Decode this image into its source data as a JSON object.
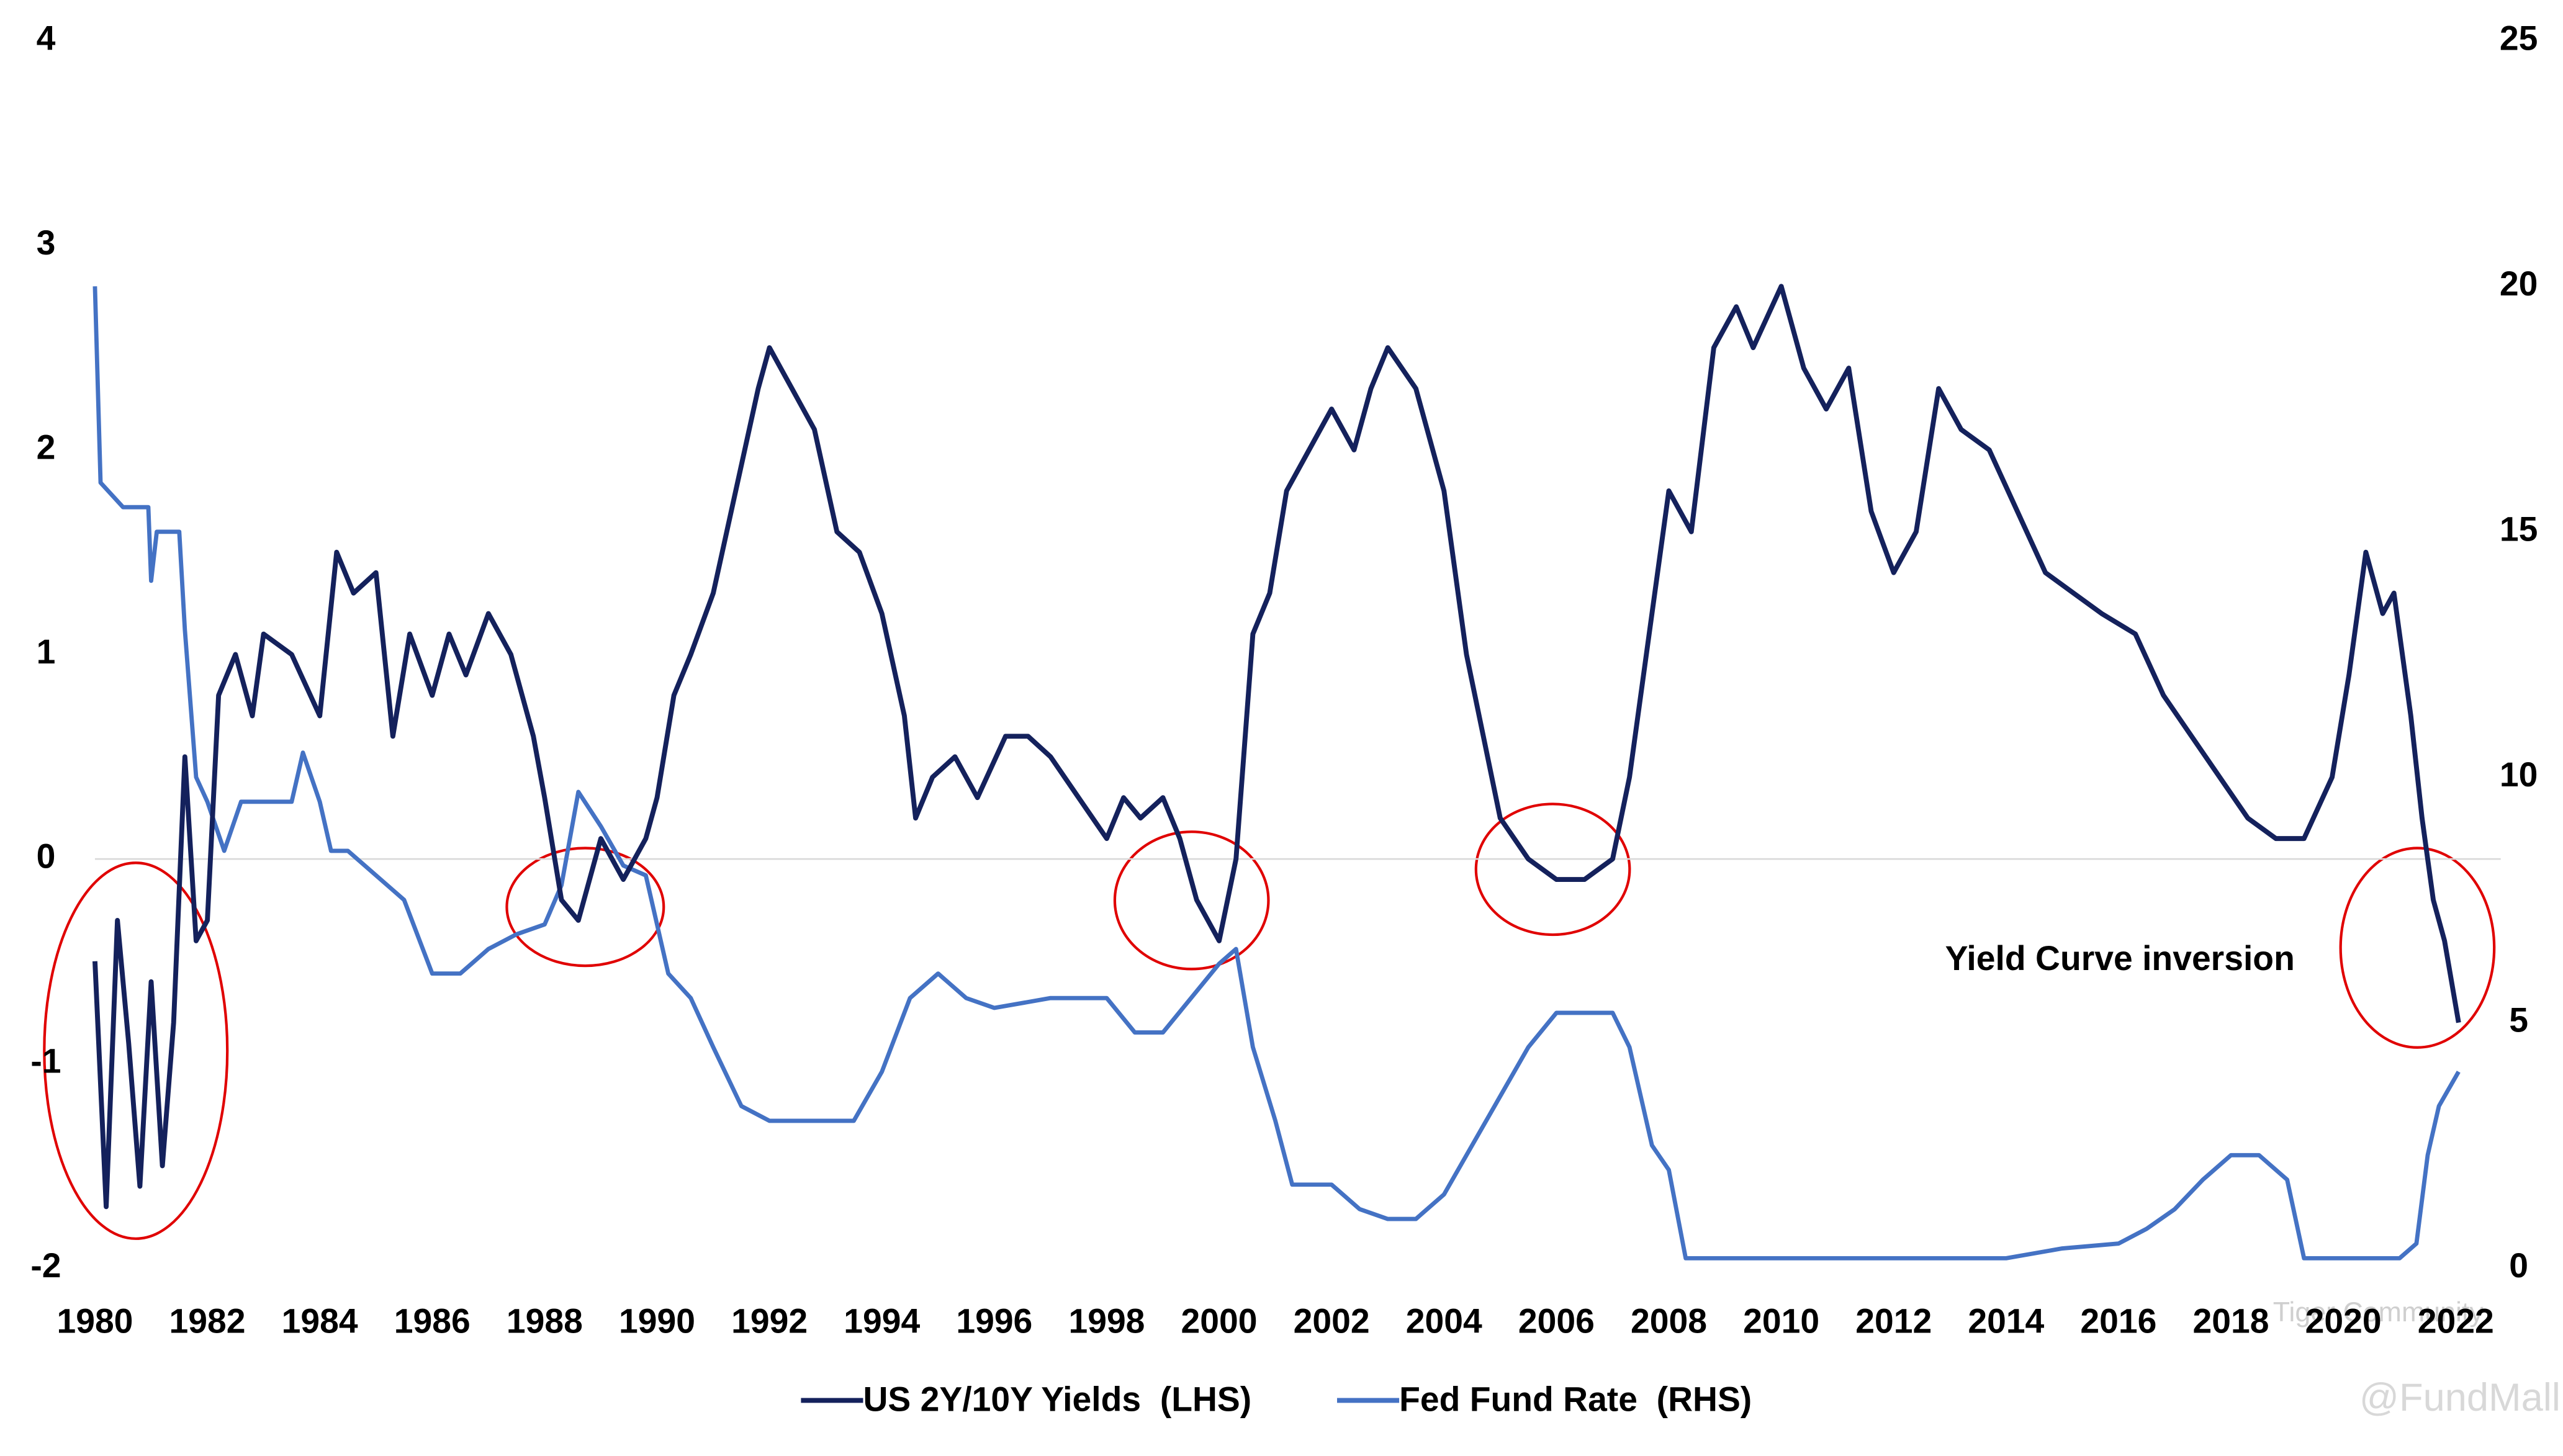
{
  "chart_data": {
    "type": "line",
    "annotations": [
      "Yield Curve inversion"
    ],
    "watermarks": [
      "Tiger Community",
      "@FundMall"
    ],
    "xlim": [
      1980,
      2022.8
    ],
    "xticks": [
      1980,
      1982,
      1984,
      1986,
      1988,
      1990,
      1992,
      1994,
      1996,
      1998,
      2000,
      2002,
      2004,
      2006,
      2008,
      2010,
      2012,
      2014,
      2016,
      2018,
      2020,
      2022
    ],
    "ylim": [
      -2,
      4
    ],
    "yticks": [
      -2,
      -1,
      0,
      1,
      2,
      3,
      4
    ],
    "y2lim": [
      0,
      25
    ],
    "y2ticks": [
      0,
      5,
      10,
      15,
      20,
      25
    ],
    "zero_line": true,
    "legend": "bottom",
    "series": [
      {
        "name": "US 2Y/10Y Yields  (LHS)",
        "color": "#14215c",
        "x": [
          1980.0,
          1980.2,
          1980.4,
          1980.6,
          1980.8,
          1981.0,
          1981.2,
          1981.4,
          1981.6,
          1981.8,
          1982.0,
          1982.2,
          1982.5,
          1982.8,
          1983.0,
          1983.5,
          1984.0,
          1984.3,
          1984.6,
          1985.0,
          1985.3,
          1985.6,
          1986.0,
          1986.3,
          1986.6,
          1987.0,
          1987.4,
          1987.8,
          1988.0,
          1988.3,
          1988.6,
          1989.0,
          1989.4,
          1989.8,
          1990.0,
          1990.3,
          1990.6,
          1991.0,
          1991.4,
          1991.8,
          1992.0,
          1992.4,
          1992.8,
          1993.2,
          1993.6,
          1994.0,
          1994.4,
          1994.6,
          1994.9,
          1995.3,
          1995.7,
          1996.2,
          1996.6,
          1997.0,
          1997.5,
          1998.0,
          1998.3,
          1998.6,
          1999.0,
          1999.3,
          1999.6,
          2000.0,
          2000.3,
          2000.6,
          2000.9,
          2001.2,
          2001.6,
          2002.0,
          2002.4,
          2002.7,
          2003.0,
          2003.5,
          2004.0,
          2004.4,
          2004.7,
          2005.0,
          2005.5,
          2006.0,
          2006.5,
          2007.0,
          2007.3,
          2007.7,
          2008.0,
          2008.4,
          2008.8,
          2009.2,
          2009.5,
          2010.0,
          2010.4,
          2010.8,
          2011.2,
          2011.6,
          2012.0,
          2012.4,
          2012.8,
          2013.2,
          2013.7,
          2014.2,
          2014.7,
          2015.2,
          2015.7,
          2016.3,
          2016.8,
          2017.3,
          2017.8,
          2018.3,
          2018.8,
          2019.3,
          2019.8,
          2020.1,
          2020.4,
          2020.7,
          2020.9,
          2021.2,
          2021.4,
          2021.6,
          2021.8,
          2022.05
        ],
        "values": [
          -0.5,
          -1.7,
          -0.3,
          -0.9,
          -1.6,
          -0.6,
          -1.5,
          -0.8,
          0.5,
          -0.4,
          -0.3,
          0.8,
          1.0,
          0.7,
          1.1,
          1.0,
          0.7,
          1.5,
          1.3,
          1.4,
          0.6,
          1.1,
          0.8,
          1.1,
          0.9,
          1.2,
          1.0,
          0.6,
          0.3,
          -0.2,
          -0.3,
          0.1,
          -0.1,
          0.1,
          0.3,
          0.8,
          1.0,
          1.3,
          1.8,
          2.3,
          2.5,
          2.3,
          2.1,
          1.6,
          1.5,
          1.2,
          0.7,
          0.2,
          0.4,
          0.5,
          0.3,
          0.6,
          0.6,
          0.5,
          0.3,
          0.1,
          0.3,
          0.2,
          0.3,
          0.1,
          -0.2,
          -0.4,
          0.0,
          1.1,
          1.3,
          1.8,
          2.0,
          2.2,
          2.0,
          2.3,
          2.5,
          2.3,
          1.8,
          1.0,
          0.6,
          0.2,
          0.0,
          -0.1,
          -0.1,
          0.0,
          0.4,
          1.2,
          1.8,
          1.6,
          2.5,
          2.7,
          2.5,
          2.8,
          2.4,
          2.2,
          2.4,
          1.7,
          1.4,
          1.6,
          2.3,
          2.1,
          2.0,
          1.7,
          1.4,
          1.3,
          1.2,
          1.1,
          0.8,
          0.6,
          0.4,
          0.2,
          0.1,
          0.1,
          0.4,
          0.9,
          1.5,
          1.2,
          1.3,
          0.7,
          0.2,
          -0.2,
          -0.4,
          -0.8
        ]
      },
      {
        "name": "Fed Fund Rate  (RHS)",
        "color": "#4472c4",
        "axis": "y2",
        "x": [
          1980.0,
          1980.1,
          1980.5,
          1980.95,
          1981.0,
          1981.1,
          1981.5,
          1981.6,
          1981.8,
          1982.0,
          1982.3,
          1982.6,
          1983.0,
          1983.5,
          1983.7,
          1984.0,
          1984.2,
          1984.5,
          1985.0,
          1985.5,
          1986.0,
          1986.5,
          1987.0,
          1987.5,
          1988.0,
          1988.3,
          1988.6,
          1989.0,
          1989.4,
          1989.8,
          1990.2,
          1990.6,
          1991.0,
          1991.5,
          1992.0,
          1993.0,
          1993.5,
          1994.0,
          1994.5,
          1995.0,
          1995.5,
          1996.0,
          1997.0,
          1998.0,
          1998.5,
          1999.0,
          1999.5,
          2000.0,
          2000.3,
          2000.6,
          2001.0,
          2001.3,
          2002.0,
          2002.5,
          2003.0,
          2003.5,
          2004.0,
          2004.5,
          2005.0,
          2005.5,
          2006.0,
          2006.5,
          2007.0,
          2007.3,
          2007.7,
          2008.0,
          2008.3,
          2010.0,
          2012.0,
          2014.0,
          2015.0,
          2016.0,
          2016.5,
          2017.0,
          2017.5,
          2018.0,
          2018.5,
          2019.0,
          2019.3,
          2021.0,
          2021.3,
          2021.5,
          2021.7,
          2022.05
        ],
        "values": [
          20,
          16,
          15.5,
          15.5,
          14,
          15,
          15,
          13,
          10,
          9.5,
          8.5,
          9.5,
          9.5,
          9.5,
          10.5,
          9.5,
          8.5,
          8.5,
          8,
          7.5,
          6,
          6,
          6.5,
          6.8,
          7,
          7.8,
          9.7,
          9,
          8.2,
          8,
          6,
          5.5,
          4.5,
          3.3,
          3,
          3,
          3,
          4,
          5.5,
          6,
          5.5,
          5.3,
          5.5,
          5.5,
          4.8,
          4.8,
          5.5,
          6.2,
          6.5,
          4.5,
          3,
          1.7,
          1.7,
          1.2,
          1.0,
          1.0,
          1.5,
          2.5,
          3.5,
          4.5,
          5.2,
          5.2,
          5.2,
          4.5,
          2.5,
          2,
          0.2,
          0.2,
          0.2,
          0.2,
          0.4,
          0.5,
          0.8,
          1.2,
          1.8,
          2.3,
          2.3,
          1.8,
          0.2,
          0.2,
          0.5,
          2.3,
          3.3,
          4.0
        ]
      }
    ]
  }
}
